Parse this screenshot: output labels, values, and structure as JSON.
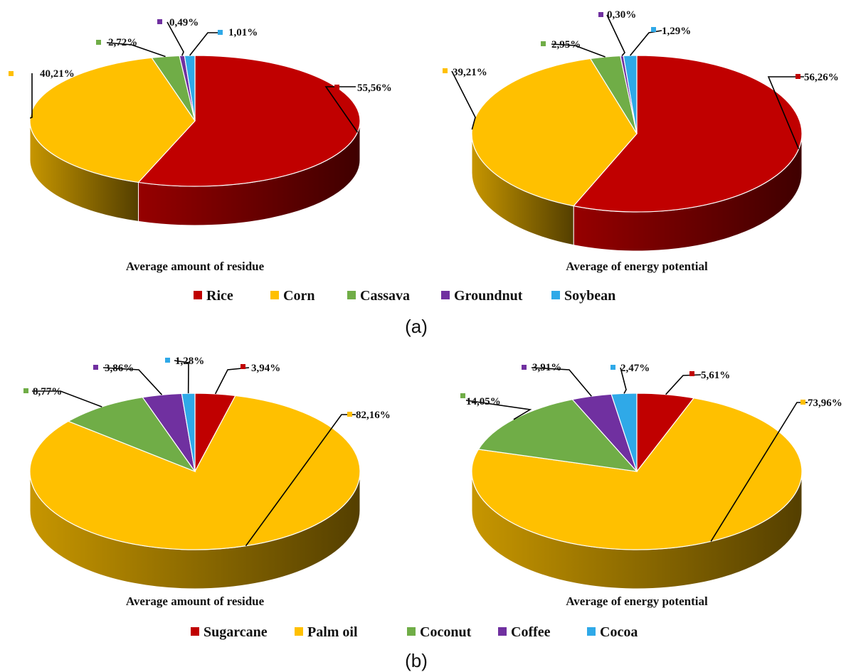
{
  "chart_data": [
    {
      "type": "pie",
      "panel": "a",
      "title": "Average amount of residue",
      "categories": [
        "Rice",
        "Corn",
        "Cassava",
        "Groundnut",
        "Soybean"
      ],
      "values": [
        55.56,
        40.21,
        2.72,
        0.49,
        1.01
      ],
      "labels": [
        "55,56%",
        "40,21%",
        "2,72%",
        "0,49%",
        "1,01%"
      ]
    },
    {
      "type": "pie",
      "panel": "a",
      "title": "Average of energy potential",
      "categories": [
        "Rice",
        "Corn",
        "Cassava",
        "Groundnut",
        "Soybean"
      ],
      "values": [
        56.26,
        39.21,
        2.95,
        0.3,
        1.29
      ],
      "labels": [
        "56,26%",
        "39,21%",
        "2,95%",
        "0,30%",
        "1,29%"
      ]
    },
    {
      "type": "pie",
      "panel": "b",
      "title": "Average amount of residue",
      "categories": [
        "Sugarcane",
        "Palm oil",
        "Coconut",
        "Coffee",
        "Cocoa"
      ],
      "values": [
        3.94,
        82.16,
        8.77,
        3.86,
        1.28
      ],
      "labels": [
        "3,94%",
        "82,16%",
        "8,77%",
        "3,86%",
        "1,28%"
      ]
    },
    {
      "type": "pie",
      "panel": "b",
      "title": "Average of energy potential",
      "categories": [
        "Sugarcane",
        "Palm oil",
        "Coconut",
        "Coffee",
        "Cocoa"
      ],
      "values": [
        5.61,
        73.96,
        14.05,
        3.91,
        2.47
      ],
      "labels": [
        "5,61%",
        "73,96%",
        "14,05%",
        "3,91%",
        "2,47%"
      ]
    }
  ],
  "colors": [
    "#c00000",
    "#ffc000",
    "#70ad47",
    "#7030a0",
    "#2fa9e8"
  ],
  "legends": {
    "a": [
      "Rice",
      "Corn",
      "Cassava",
      "Groundnut",
      "Soybean"
    ],
    "b": [
      "Sugarcane",
      "Palm oil",
      "Coconut",
      "Coffee",
      "Cocoa"
    ]
  },
  "panel_labels": [
    "(a)",
    "(b)"
  ]
}
